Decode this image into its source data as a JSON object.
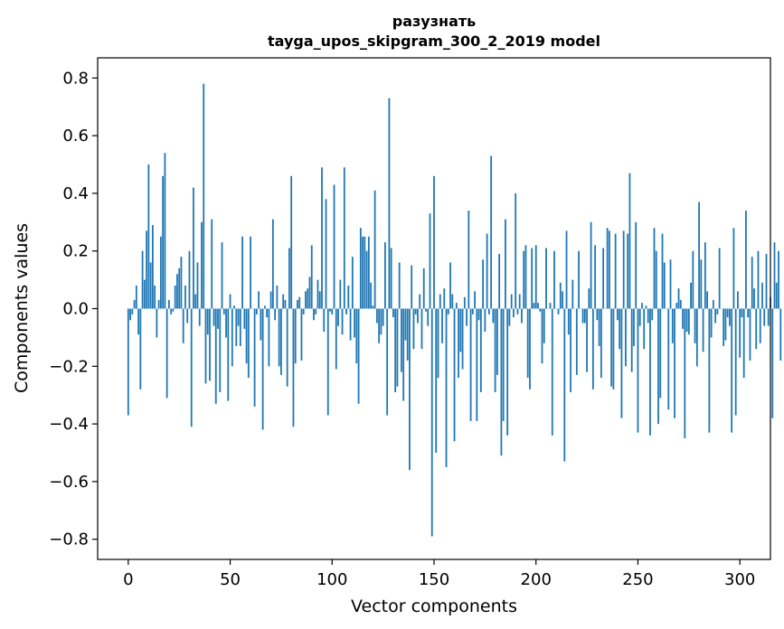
{
  "chart_data": {
    "type": "bar",
    "title": "разузнать",
    "subtitle": "tayga_upos_skipgram_300_2_2019 model",
    "xlabel": "Vector components",
    "ylabel": "Components values",
    "xlim": [
      -15,
      315
    ],
    "ylim": [
      -0.87,
      0.87
    ],
    "xticks": [
      0,
      50,
      100,
      150,
      200,
      250,
      300
    ],
    "yticks": [
      -0.8,
      -0.6,
      -0.4,
      -0.2,
      0.0,
      0.2,
      0.4,
      0.6,
      0.8
    ],
    "ytick_labels": [
      "−0.8",
      "−0.6",
      "−0.4",
      "−0.2",
      "0.0",
      "0.2",
      "0.4",
      "0.6",
      "0.8"
    ],
    "bar_color": "#1f77b4",
    "values": [
      -0.37,
      -0.04,
      -0.02,
      0.03,
      0.08,
      -0.09,
      -0.28,
      0.2,
      0.1,
      0.27,
      0.5,
      0.16,
      0.29,
      0.08,
      -0.1,
      0.03,
      0.25,
      0.46,
      0.54,
      -0.31,
      0.03,
      -0.02,
      -0.01,
      0.08,
      0.12,
      0.14,
      0.18,
      -0.12,
      0.08,
      -0.05,
      0.2,
      -0.41,
      0.42,
      0.05,
      0.16,
      -0.06,
      0.3,
      0.78,
      -0.26,
      -0.09,
      -0.25,
      0.31,
      -0.06,
      -0.33,
      -0.07,
      -0.29,
      0.23,
      -0.02,
      -0.1,
      -0.32,
      0.05,
      -0.2,
      0.01,
      -0.13,
      -0.06,
      -0.13,
      0.25,
      -0.07,
      -0.19,
      -0.24,
      0.25,
      0.0,
      -0.34,
      -0.02,
      0.06,
      -0.11,
      -0.42,
      0.01,
      -0.03,
      -0.2,
      0.06,
      0.31,
      -0.04,
      0.08,
      -0.2,
      -0.23,
      0.05,
      0.03,
      -0.27,
      0.21,
      0.46,
      -0.41,
      -0.19,
      0.03,
      0.04,
      -0.18,
      -0.02,
      0.06,
      0.07,
      0.11,
      0.22,
      -0.04,
      -0.02,
      0.1,
      0.06,
      0.49,
      -0.08,
      0.38,
      -0.37,
      -0.01,
      -0.02,
      0.43,
      -0.21,
      -0.06,
      0.1,
      -0.09,
      0.49,
      -0.02,
      0.08,
      -0.11,
      0.18,
      -0.1,
      -0.19,
      -0.33,
      0.28,
      0.25,
      0.25,
      0.2,
      0.25,
      0.09,
      0.01,
      0.41,
      -0.05,
      -0.12,
      -0.09,
      -0.06,
      0.23,
      -0.37,
      0.73,
      0.21,
      -0.03,
      -0.29,
      -0.27,
      0.16,
      -0.22,
      -0.32,
      -0.11,
      -0.18,
      -0.56,
      0.15,
      -0.14,
      -0.02,
      -0.05,
      0.05,
      -0.14,
      0.14,
      -0.01,
      -0.06,
      0.33,
      -0.79,
      0.46,
      -0.5,
      -0.24,
      0.05,
      -0.12,
      0.07,
      -0.55,
      -0.02,
      0.16,
      0.05,
      -0.46,
      0.02,
      -0.24,
      -0.15,
      -0.21,
      0.04,
      -0.06,
      0.34,
      -0.39,
      -0.02,
      0.06,
      -0.39,
      -0.04,
      -0.29,
      0.17,
      -0.08,
      0.26,
      -0.02,
      0.53,
      -0.05,
      -0.29,
      -0.23,
      0.19,
      -0.51,
      -0.39,
      0.31,
      -0.44,
      -0.06,
      0.05,
      -0.03,
      0.4,
      -0.02,
      0.05,
      -0.05,
      0.2,
      0.22,
      -0.24,
      -0.28,
      0.21,
      0.02,
      0.22,
      0.02,
      -0.01,
      -0.19,
      -0.12,
      0.21,
      0.0,
      0.02,
      -0.44,
      0.2,
      0.0,
      -0.02,
      0.09,
      0.06,
      -0.53,
      0.27,
      -0.09,
      -0.29,
      0.1,
      0.0,
      -0.23,
      0.2,
      0.0,
      -0.05,
      -0.05,
      -0.22,
      0.07,
      0.3,
      -0.28,
      0.22,
      -0.04,
      -0.13,
      -0.24,
      0.21,
      0.0,
      0.28,
      0.27,
      -0.27,
      -0.28,
      0.26,
      -0.04,
      -0.14,
      -0.38,
      0.27,
      -0.2,
      0.26,
      0.47,
      -0.22,
      -0.13,
      0.3,
      -0.43,
      -0.06,
      0.02,
      -0.14,
      0.01,
      -0.05,
      -0.44,
      -0.04,
      0.28,
      0.2,
      -0.4,
      -0.31,
      0.26,
      0.16,
      0.0,
      -0.35,
      0.17,
      -0.12,
      -0.38,
      0.02,
      0.07,
      0.03,
      -0.07,
      -0.45,
      -0.08,
      -0.09,
      0.09,
      0.2,
      -0.12,
      -0.2,
      0.37,
      0.17,
      -0.15,
      0.23,
      0.06,
      -0.43,
      -0.1,
      0.03,
      -0.05,
      -0.02,
      0.21,
      0.0,
      -0.13,
      -0.11,
      -0.03,
      -0.06,
      -0.43,
      0.28,
      -0.37,
      0.06,
      -0.17,
      -0.03,
      -0.24,
      0.34,
      -0.03,
      -0.18,
      0.18,
      0.07,
      -0.14,
      0.2,
      -0.12,
      0.09,
      -0.06,
      0.19,
      -0.06,
      0.04,
      -0.38,
      0.23,
      0.09,
      0.2,
      -0.18
    ]
  }
}
